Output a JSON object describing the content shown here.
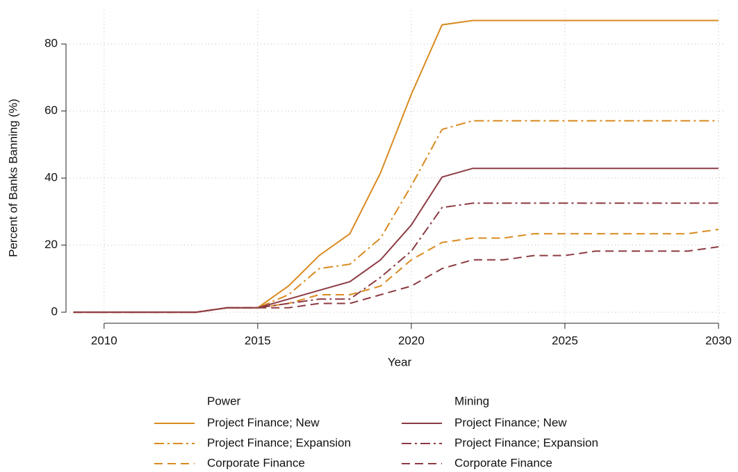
{
  "chart_data": {
    "type": "line",
    "x_label": "Year",
    "y_label": "Percent of Banks Banning (%)",
    "x": [
      2009,
      2010,
      2011,
      2012,
      2013,
      2014,
      2015,
      2016,
      2017,
      2018,
      2019,
      2020,
      2021,
      2022,
      2023,
      2024,
      2025,
      2026,
      2027,
      2028,
      2029,
      2030
    ],
    "xlim": [
      2008.76,
      2030.25
    ],
    "xticks": [
      2010,
      2015,
      2020,
      2025,
      2030
    ],
    "ylim": [
      -3.3,
      90
    ],
    "yticks": [
      0,
      20,
      40,
      60,
      80
    ],
    "grid": true,
    "legend_titles": [
      "Power",
      "Mining"
    ],
    "series": [
      {
        "name": "Project Finance; New",
        "color": "#d98a1f",
        "dash": "solid",
        "values": [
          0,
          0,
          0,
          0,
          0,
          1.3,
          1.3,
          7.8,
          16.9,
          23.4,
          41.6,
          65,
          85.7,
          87,
          87,
          87,
          87,
          87,
          87,
          87,
          87,
          87
        ]
      },
      {
        "name": "Project Finance; Expansion",
        "color": "#d98a1f",
        "dash": "dashdot",
        "values": [
          0,
          0,
          0,
          0,
          0,
          1.3,
          1.3,
          5.2,
          13,
          14.3,
          22.1,
          37.7,
          54.5,
          57.1,
          57.1,
          57.1,
          57.1,
          57.1,
          57.1,
          57.1,
          57.1,
          57.1
        ]
      },
      {
        "name": "Corporate Finance",
        "color": "#d98a1f",
        "dash": "dash",
        "values": [
          0,
          0,
          0,
          0,
          0,
          1.3,
          1.3,
          2.6,
          5.2,
          5.2,
          7.8,
          15.6,
          20.8,
          22.1,
          22.1,
          23.4,
          23.4,
          23.4,
          23.4,
          23.4,
          23.4,
          24.7
        ]
      },
      {
        "name": "Project Finance; New",
        "color": "#8c3a42",
        "dash": "solid",
        "values": [
          0,
          0,
          0,
          0,
          0,
          1.3,
          1.3,
          3.9,
          6.5,
          9.1,
          15.6,
          26,
          40.3,
          42.9,
          42.9,
          42.9,
          42.9,
          42.9,
          42.9,
          42.9,
          42.9,
          42.9
        ]
      },
      {
        "name": "Project Finance; Expansion",
        "color": "#8c3a42",
        "dash": "dashdot",
        "values": [
          0,
          0,
          0,
          0,
          0,
          1.3,
          1.3,
          2.6,
          3.9,
          3.9,
          10.4,
          18.2,
          31.2,
          32.5,
          32.5,
          32.5,
          32.5,
          32.5,
          32.5,
          32.5,
          32.5,
          32.5
        ]
      },
      {
        "name": "Corporate Finance",
        "color": "#8c3a42",
        "dash": "dash",
        "values": [
          0,
          0,
          0,
          0,
          0,
          1.3,
          1.3,
          1.3,
          2.6,
          2.6,
          5.2,
          7.8,
          13,
          15.6,
          15.6,
          16.9,
          16.9,
          18.2,
          18.2,
          18.2,
          18.2,
          19.5
        ]
      }
    ]
  }
}
